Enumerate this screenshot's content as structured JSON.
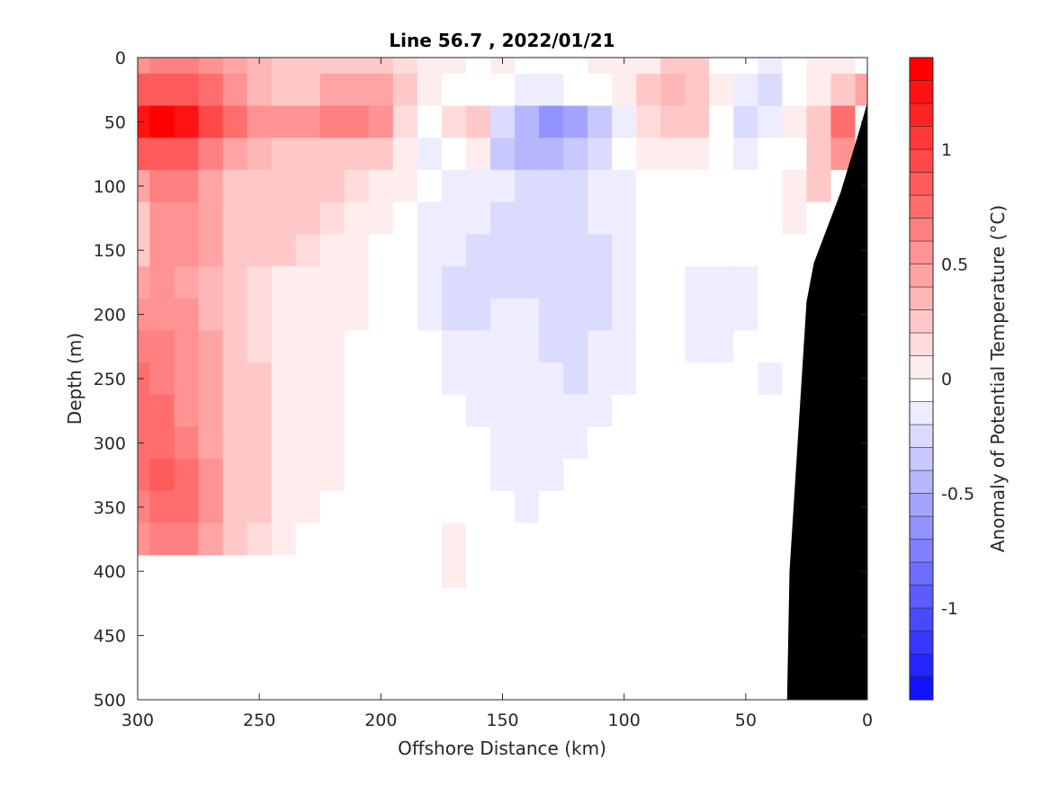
{
  "chart_data": {
    "type": "heatmap",
    "title": "Line 56.7 , 2022/01/21",
    "xlabel": "Offshore Distance (km)",
    "ylabel": "Depth (m)",
    "colorbar_label": "Anomaly of Potential Temperature (°C)",
    "x_reversed": true,
    "xlim": [
      300,
      0
    ],
    "ylim": [
      0,
      500
    ],
    "y_reversed": true,
    "x_ticks": [
      "300",
      "250",
      "200",
      "150",
      "100",
      "50",
      "0"
    ],
    "y_ticks": [
      "0",
      "50",
      "100",
      "150",
      "200",
      "250",
      "300",
      "350",
      "400",
      "450",
      "500"
    ],
    "colorbar_range": [
      -1.4,
      1.4
    ],
    "colorbar_ticks": [
      "1",
      "0.5",
      "0",
      "-0.5",
      "-1"
    ],
    "colorbar_step": 0.1,
    "bathymetry_color": "#000000",
    "colors": {
      "positive": "#ff0000",
      "negative": "#0000ff",
      "neutral": "#ffffff"
    },
    "x": [
      300,
      290,
      280,
      270,
      260,
      250,
      240,
      230,
      220,
      210,
      200,
      190,
      180,
      170,
      160,
      150,
      140,
      130,
      120,
      110,
      100,
      90,
      80,
      70,
      60,
      50,
      40,
      30,
      20,
      10,
      0
    ],
    "y": [
      0,
      25,
      50,
      75,
      100,
      125,
      150,
      175,
      200,
      225,
      250,
      275,
      300,
      325,
      350,
      375,
      400
    ],
    "z": [
      [
        0.6,
        0.65,
        0.65,
        0.6,
        0.5,
        0.4,
        0.35,
        0.35,
        0.35,
        0.3,
        0.25,
        0.2,
        0.15,
        0.05,
        0.0,
        0.05,
        -0.05,
        -0.05,
        0.0,
        0.05,
        0.05,
        0.15,
        0.25,
        0.25,
        -0.05,
        -0.05,
        -0.1,
        0.0,
        0.05,
        0.1,
        0.0
      ],
      [
        0.9,
        0.95,
        0.95,
        0.75,
        0.6,
        0.4,
        0.3,
        0.35,
        0.45,
        0.5,
        0.45,
        0.25,
        0.1,
        0.0,
        0.0,
        -0.05,
        -0.1,
        -0.1,
        -0.05,
        0.0,
        0.1,
        0.25,
        0.4,
        0.35,
        0.05,
        -0.15,
        -0.2,
        0.0,
        0.15,
        0.3,
        0.5
      ],
      [
        1.3,
        1.35,
        1.3,
        1.0,
        0.75,
        0.6,
        0.55,
        0.55,
        0.65,
        0.7,
        0.55,
        0.2,
        0.0,
        0.2,
        0.25,
        -0.25,
        -0.45,
        -0.6,
        -0.5,
        -0.35,
        -0.1,
        0.2,
        0.35,
        0.3,
        0.0,
        -0.2,
        -0.15,
        0.05,
        0.35,
        0.75,
        0.0
      ],
      [
        0.85,
        0.9,
        0.85,
        0.7,
        0.5,
        0.4,
        0.35,
        0.35,
        0.35,
        0.35,
        0.25,
        0.05,
        -0.1,
        0.0,
        0.05,
        -0.3,
        -0.4,
        -0.4,
        -0.3,
        -0.2,
        -0.05,
        0.05,
        0.15,
        0.1,
        -0.05,
        -0.1,
        -0.05,
        0.0,
        0.3,
        0.6,
        0.0
      ],
      [
        0.5,
        0.7,
        0.7,
        0.5,
        0.35,
        0.3,
        0.3,
        0.3,
        0.25,
        0.2,
        0.15,
        0.05,
        -0.05,
        -0.1,
        -0.1,
        -0.15,
        -0.2,
        -0.2,
        -0.2,
        -0.15,
        -0.1,
        -0.05,
        0.0,
        0.0,
        0.0,
        0.0,
        0.0,
        0.05,
        0.25,
        0.0,
        0.0
      ],
      [
        0.35,
        0.55,
        0.55,
        0.45,
        0.35,
        0.3,
        0.25,
        0.25,
        0.2,
        0.15,
        0.05,
        -0.05,
        -0.1,
        -0.15,
        -0.15,
        -0.2,
        -0.2,
        -0.25,
        -0.25,
        -0.15,
        -0.1,
        -0.05,
        0.0,
        0.0,
        0.0,
        0.0,
        0.0,
        0.05,
        0.0,
        0.0,
        0.0
      ],
      [
        0.25,
        0.55,
        0.55,
        0.45,
        0.35,
        0.3,
        0.25,
        0.2,
        0.15,
        0.1,
        0.0,
        -0.05,
        -0.1,
        -0.15,
        -0.2,
        -0.25,
        -0.25,
        -0.25,
        -0.25,
        -0.2,
        -0.1,
        -0.05,
        0.0,
        -0.05,
        -0.05,
        -0.05,
        -0.05,
        0.0,
        0.0,
        0.0,
        0.0
      ],
      [
        0.45,
        0.55,
        0.5,
        0.4,
        0.3,
        0.2,
        0.15,
        0.15,
        0.1,
        0.05,
        0.0,
        -0.05,
        -0.15,
        -0.2,
        -0.25,
        -0.25,
        -0.2,
        -0.25,
        -0.25,
        -0.2,
        -0.1,
        -0.05,
        -0.05,
        -0.1,
        -0.1,
        -0.1,
        -0.05,
        0.0,
        0.0,
        0.0,
        0.0
      ],
      [
        0.55,
        0.6,
        0.55,
        0.4,
        0.3,
        0.2,
        0.15,
        0.1,
        0.1,
        0.05,
        0.0,
        -0.05,
        -0.15,
        -0.2,
        -0.2,
        -0.15,
        -0.15,
        -0.25,
        -0.25,
        -0.2,
        -0.1,
        -0.05,
        -0.05,
        -0.1,
        -0.1,
        -0.1,
        -0.05,
        0.0,
        0.0,
        0.0,
        0.0
      ],
      [
        0.7,
        0.7,
        0.6,
        0.45,
        0.3,
        0.2,
        0.15,
        0.1,
        0.05,
        0.0,
        0.0,
        0.0,
        -0.05,
        -0.15,
        -0.15,
        -0.1,
        -0.15,
        -0.25,
        -0.25,
        -0.15,
        -0.1,
        -0.05,
        -0.05,
        -0.1,
        -0.1,
        -0.05,
        -0.05,
        0.0,
        0.0,
        0.0,
        0.0
      ],
      [
        0.75,
        0.7,
        0.55,
        0.45,
        0.35,
        0.25,
        0.15,
        0.1,
        0.05,
        0.0,
        0.0,
        0.0,
        0.0,
        -0.1,
        -0.15,
        -0.1,
        -0.1,
        -0.15,
        -0.2,
        -0.15,
        -0.1,
        -0.05,
        -0.05,
        -0.05,
        -0.05,
        -0.05,
        -0.1,
        0.0,
        0.0,
        0.0,
        0.0
      ],
      [
        0.8,
        0.75,
        0.6,
        0.45,
        0.35,
        0.25,
        0.15,
        0.1,
        0.05,
        0.0,
        0.0,
        0.0,
        0.0,
        -0.05,
        -0.1,
        -0.1,
        -0.1,
        -0.15,
        -0.15,
        -0.1,
        -0.05,
        -0.05,
        0.0,
        0.0,
        -0.05,
        -0.05,
        -0.05,
        0.0,
        0.0,
        0.0,
        0.0
      ],
      [
        0.8,
        0.8,
        0.7,
        0.5,
        0.35,
        0.25,
        0.15,
        0.1,
        0.05,
        0.0,
        0.0,
        0.0,
        0.0,
        0.0,
        -0.05,
        -0.1,
        -0.1,
        -0.15,
        -0.1,
        -0.05,
        -0.05,
        0.0,
        0.0,
        0.0,
        0.0,
        0.0,
        0.0,
        0.0,
        0.0,
        0.0,
        0.0
      ],
      [
        0.8,
        0.85,
        0.75,
        0.55,
        0.35,
        0.25,
        0.15,
        0.1,
        0.05,
        0.0,
        0.0,
        0.0,
        0.0,
        0.0,
        -0.05,
        -0.1,
        -0.1,
        -0.1,
        -0.05,
        -0.05,
        0.0,
        0.0,
        0.0,
        0.0,
        0.0,
        0.0,
        0.0,
        0.0,
        0.0,
        0.0,
        0.0
      ],
      [
        0.7,
        0.8,
        0.75,
        0.55,
        0.35,
        0.25,
        0.1,
        0.05,
        0.0,
        0.0,
        -0.05,
        -0.05,
        0.0,
        0.0,
        0.0,
        -0.05,
        -0.1,
        -0.05,
        0.0,
        0.0,
        0.0,
        0.0,
        0.0,
        0.0,
        0.0,
        0.0,
        0.0,
        0.0,
        0.0,
        0.0,
        0.0
      ],
      [
        0.6,
        0.7,
        0.7,
        0.5,
        0.3,
        0.2,
        0.05,
        0.0,
        0.0,
        -0.05,
        -0.05,
        -0.05,
        0.0,
        0.05,
        0.0,
        -0.05,
        -0.05,
        0.0,
        0.0,
        0.0,
        0.0,
        0.0,
        0.0,
        0.0,
        0.0,
        0.0,
        0.0,
        0.0,
        0.0,
        0.0,
        0.0
      ],
      [
        0.0,
        0.0,
        0.0,
        0.0,
        0.0,
        0.0,
        0.0,
        0.0,
        0.0,
        0.0,
        0.0,
        0.0,
        0.0,
        0.15,
        0.0,
        0.0,
        0.0,
        0.0,
        0.0,
        0.0,
        0.0,
        0.0,
        0.0,
        0.0,
        0.0,
        0.0,
        0.0,
        0.0,
        0.0,
        0.0,
        0.0
      ]
    ],
    "bathymetry": {
      "x": [
        33,
        32,
        30,
        27,
        25,
        22,
        19,
        15,
        11,
        7,
        3,
        0
      ],
      "depth": [
        500,
        400,
        340,
        250,
        190,
        160,
        145,
        125,
        105,
        80,
        55,
        35
      ]
    }
  }
}
